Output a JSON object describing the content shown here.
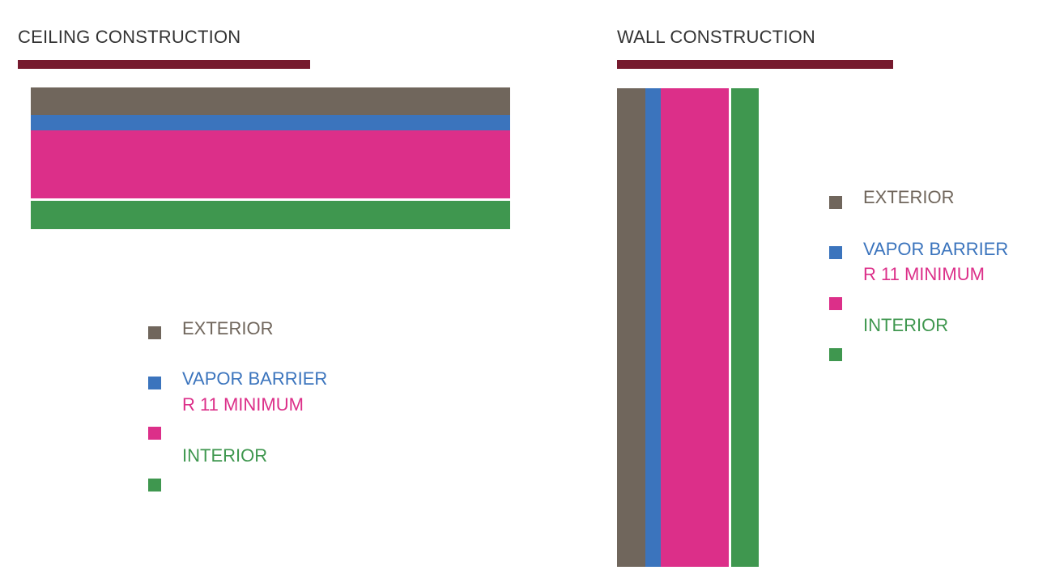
{
  "colors": {
    "exterior": "#70665c",
    "vapor_barrier": "#3b74bd",
    "insulation": "#dc2f89",
    "interior": "#3f974f",
    "rule": "#761a2e"
  },
  "ceiling": {
    "title": "CEILING CONSTRUCTION",
    "legend": {
      "exterior": "EXTERIOR",
      "vapor_barrier": "VAPOR BARRIER",
      "insulation": "R 11 MINIMUM",
      "interior": "INTERIOR"
    }
  },
  "wall": {
    "title": "WALL CONSTRUCTION",
    "legend": {
      "exterior": "EXTERIOR",
      "vapor_barrier": "VAPOR BARRIER",
      "insulation": "R 11 MINIMUM",
      "interior": "INTERIOR"
    }
  }
}
